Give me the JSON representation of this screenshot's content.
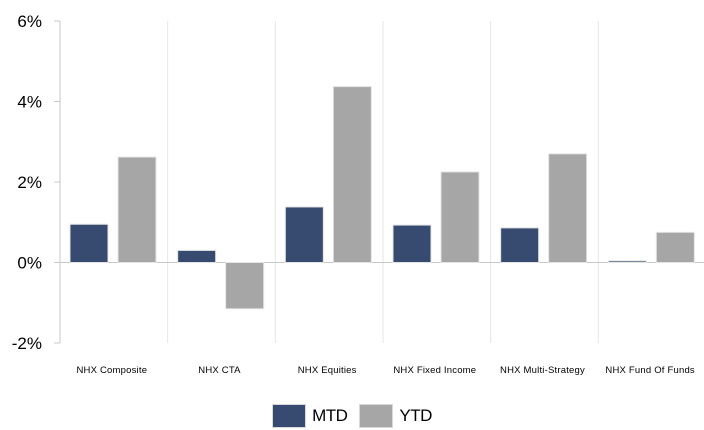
{
  "chart_data": {
    "type": "bar",
    "title": "",
    "xlabel": "",
    "ylabel": "",
    "categories": [
      "NHX Composite",
      "NHX CTA",
      "NHX Equities",
      "NHX Fixed Income",
      "NHX Multi-Strategy",
      "NHX Fund Of Funds"
    ],
    "series": [
      {
        "name": "MTD",
        "color": "#374a70",
        "values": [
          0.95,
          0.3,
          1.38,
          0.93,
          0.86,
          0.04
        ]
      },
      {
        "name": "YTD",
        "color": "#a6a6a6",
        "values": [
          2.62,
          -1.15,
          4.37,
          2.25,
          2.7,
          0.75
        ]
      }
    ],
    "ylim": [
      -2,
      6
    ],
    "yticks": [
      6,
      4,
      2,
      0,
      -2
    ],
    "ytick_labels": [
      "6%",
      "4%",
      "2%",
      "0%",
      "-2%"
    ],
    "grid": true,
    "legend_position": "bottom"
  }
}
